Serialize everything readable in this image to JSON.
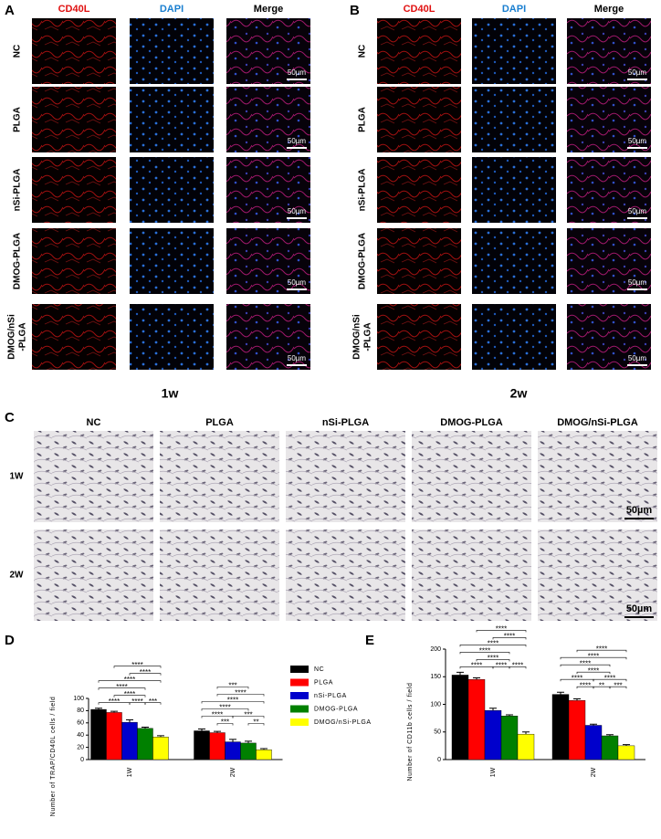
{
  "panels": {
    "A": {
      "letter": "A",
      "columns": [
        "CD40L",
        "DAPI",
        "Merge"
      ],
      "rows": [
        [
          "NC"
        ],
        [
          "PLGA"
        ],
        [
          "nSi-PLGA"
        ],
        [
          "DMOG-PLGA"
        ],
        [
          "DMOG/nSi",
          "-PLGA"
        ]
      ],
      "scale_bar": "50µm",
      "caption": "1w"
    },
    "B": {
      "letter": "B",
      "columns": [
        "CD40L",
        "DAPI",
        "Merge"
      ],
      "rows": [
        [
          "NC"
        ],
        [
          "PLGA"
        ],
        [
          "nSi-PLGA"
        ],
        [
          "DMOG-PLGA"
        ],
        [
          "DMOG/nSi",
          "-PLGA"
        ]
      ],
      "scale_bar": "50µm",
      "caption": "2w"
    },
    "C": {
      "letter": "C",
      "columns": [
        "NC",
        "PLGA",
        "nSi-PLGA",
        "DMOG-PLGA",
        "DMOG/nSi-PLGA"
      ],
      "rows": [
        "1W",
        "2W"
      ],
      "scale_bar": "50µm"
    }
  },
  "chart_data": [
    {
      "type": "bar",
      "panel_label": "D",
      "y_label": "Number of TRAP/CD40L cells / field",
      "categories": [
        "1W",
        "2W"
      ],
      "ylim": [
        0,
        100
      ],
      "yticks": [
        0,
        20,
        40,
        60,
        80,
        100
      ],
      "series": [
        {
          "name": "NC",
          "color": "#000000",
          "values": [
            82,
            47
          ],
          "errors": [
            2,
            3
          ]
        },
        {
          "name": "PLGA",
          "color": "#ff0000",
          "values": [
            77,
            44
          ],
          "errors": [
            2,
            2
          ]
        },
        {
          "name": "nSi-PLGA",
          "color": "#0000cc",
          "values": [
            61,
            29
          ],
          "errors": [
            4,
            4
          ]
        },
        {
          "name": "DMOG-PLGA",
          "color": "#008000",
          "values": [
            51,
            27
          ],
          "errors": [
            2,
            3
          ]
        },
        {
          "name": "DMOG/nSi-PLGA",
          "color": "#ffff00",
          "values": [
            37,
            16
          ],
          "errors": [
            2,
            2
          ]
        }
      ],
      "comparisons": [
        {
          "category": 0,
          "from": 3,
          "to": 4,
          "label": "***"
        },
        {
          "category": 0,
          "from": 2,
          "to": 3,
          "label": "****"
        },
        {
          "category": 0,
          "from": 0,
          "to": 2,
          "label": "****"
        },
        {
          "category": 0,
          "from": 1,
          "to": 3,
          "label": "****"
        },
        {
          "category": 0,
          "from": 0,
          "to": 3,
          "label": "****"
        },
        {
          "category": 0,
          "from": 0,
          "to": 4,
          "label": "****"
        },
        {
          "category": 0,
          "from": 2,
          "to": 4,
          "label": "****"
        },
        {
          "category": 0,
          "from": 1,
          "to": 4,
          "label": "****"
        },
        {
          "category": 1,
          "from": 1,
          "to": 2,
          "label": "***"
        },
        {
          "category": 1,
          "from": 3,
          "to": 4,
          "label": "**"
        },
        {
          "category": 1,
          "from": 0,
          "to": 2,
          "label": "****"
        },
        {
          "category": 1,
          "from": 2,
          "to": 4,
          "label": "***"
        },
        {
          "category": 1,
          "from": 0,
          "to": 3,
          "label": "****"
        },
        {
          "category": 1,
          "from": 0,
          "to": 4,
          "label": "****"
        },
        {
          "category": 1,
          "from": 1,
          "to": 4,
          "label": "****"
        },
        {
          "category": 1,
          "from": 1,
          "to": 3,
          "label": "***"
        }
      ]
    },
    {
      "type": "bar",
      "panel_label": "E",
      "y_label": "Number of CD11b cells / field",
      "categories": [
        "1W",
        "2W"
      ],
      "ylim": [
        0,
        200
      ],
      "yticks": [
        0,
        50,
        100,
        150,
        200
      ],
      "series": [
        {
          "color": "#000000",
          "values": [
            153,
            118
          ],
          "errors": [
            5,
            4
          ]
        },
        {
          "color": "#ff0000",
          "values": [
            145,
            107
          ],
          "errors": [
            3,
            3
          ]
        },
        {
          "color": "#0000cc",
          "values": [
            89,
            62
          ],
          "errors": [
            4,
            2
          ]
        },
        {
          "color": "#008000",
          "values": [
            79,
            43
          ],
          "errors": [
            2,
            2
          ]
        },
        {
          "color": "#ffff00",
          "values": [
            46,
            25
          ],
          "errors": [
            4,
            2
          ]
        }
      ],
      "comparisons": [
        {
          "category": 0,
          "from": 2,
          "to": 3,
          "label": "****"
        },
        {
          "category": 0,
          "from": 3,
          "to": 4,
          "label": "****"
        },
        {
          "category": 0,
          "from": 0,
          "to": 2,
          "label": "****"
        },
        {
          "category": 0,
          "from": 1,
          "to": 3,
          "label": "****"
        },
        {
          "category": 0,
          "from": 0,
          "to": 3,
          "label": "****"
        },
        {
          "category": 0,
          "from": 0,
          "to": 4,
          "label": "****"
        },
        {
          "category": 0,
          "from": 2,
          "to": 4,
          "label": "****"
        },
        {
          "category": 0,
          "from": 1,
          "to": 4,
          "label": "****"
        },
        {
          "category": 1,
          "from": 1,
          "to": 2,
          "label": "****"
        },
        {
          "category": 1,
          "from": 2,
          "to": 3,
          "label": "**"
        },
        {
          "category": 1,
          "from": 3,
          "to": 4,
          "label": "***"
        },
        {
          "category": 1,
          "from": 0,
          "to": 2,
          "label": "****"
        },
        {
          "category": 1,
          "from": 1,
          "to": 3,
          "label": "****"
        },
        {
          "category": 1,
          "from": 0,
          "to": 3,
          "label": "****"
        },
        {
          "category": 1,
          "from": 0,
          "to": 4,
          "label": "****"
        },
        {
          "category": 1,
          "from": 2,
          "to": 4,
          "label": "****"
        },
        {
          "category": 1,
          "from": 1,
          "to": 4,
          "label": "****"
        }
      ]
    }
  ]
}
